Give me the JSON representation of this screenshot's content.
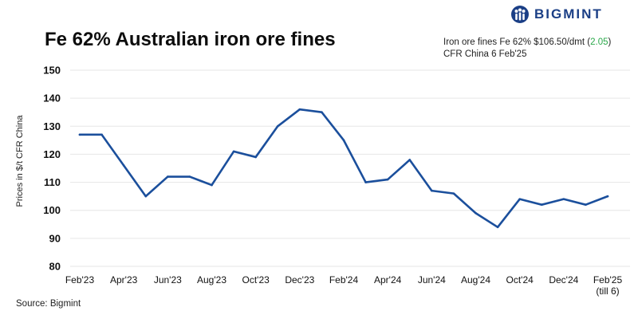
{
  "brand": {
    "name": "BIGMINT",
    "color": "#1b3f86"
  },
  "annotation": {
    "line1_prefix": "Iron ore fines Fe 62% $106.50/dmt (",
    "line1_change": "2.05",
    "line1_suffix": ")",
    "line2": "CFR China 6 Feb'25",
    "change_color": "#2aa84a"
  },
  "source": "Source: Bigmint",
  "chart_data": {
    "type": "line",
    "title": "Fe 62% Australian iron ore fines",
    "ylabel": "Prices in $/t CFR China",
    "xlabel": "",
    "ylim": [
      80,
      150
    ],
    "yticks": [
      80,
      90,
      100,
      110,
      120,
      130,
      140,
      150
    ],
    "grid": true,
    "legend": "none",
    "line_color": "#1b4f9c",
    "x_tick_labels": [
      {
        "index": 0,
        "label": "Feb'23"
      },
      {
        "index": 2,
        "label": "Apr'23"
      },
      {
        "index": 4,
        "label": "Jun'23"
      },
      {
        "index": 6,
        "label": "Aug'23"
      },
      {
        "index": 8,
        "label": "Oct'23"
      },
      {
        "index": 10,
        "label": "Dec'23"
      },
      {
        "index": 12,
        "label": "Feb'24"
      },
      {
        "index": 14,
        "label": "Apr'24"
      },
      {
        "index": 16,
        "label": "Jun'24"
      },
      {
        "index": 18,
        "label": "Aug'24"
      },
      {
        "index": 20,
        "label": "Oct'24"
      },
      {
        "index": 22,
        "label": "Dec'24"
      },
      {
        "index": 24,
        "label": "Feb'25",
        "sublabel": "(till 6)"
      }
    ],
    "series": [
      {
        "x": [
          "Feb'23",
          "Mar'23",
          "Apr'23",
          "May'23",
          "Jun'23",
          "Jul'23",
          "Aug'23",
          "Sep'23",
          "Oct'23",
          "Nov'23",
          "Dec'23",
          "Jan'24",
          "Feb'24",
          "Mar'24",
          "Apr'24",
          "May'24",
          "Jun'24",
          "Jul'24",
          "Aug'24",
          "Sep'24",
          "Oct'24",
          "Nov'24",
          "Dec'24",
          "Jan'25",
          "Feb'25"
        ],
        "values": [
          127,
          127,
          116,
          105,
          112,
          112,
          109,
          121,
          119,
          130,
          136,
          135,
          125,
          110,
          111,
          118,
          107,
          106,
          99,
          94,
          104,
          102,
          104,
          102,
          105
        ]
      }
    ]
  }
}
